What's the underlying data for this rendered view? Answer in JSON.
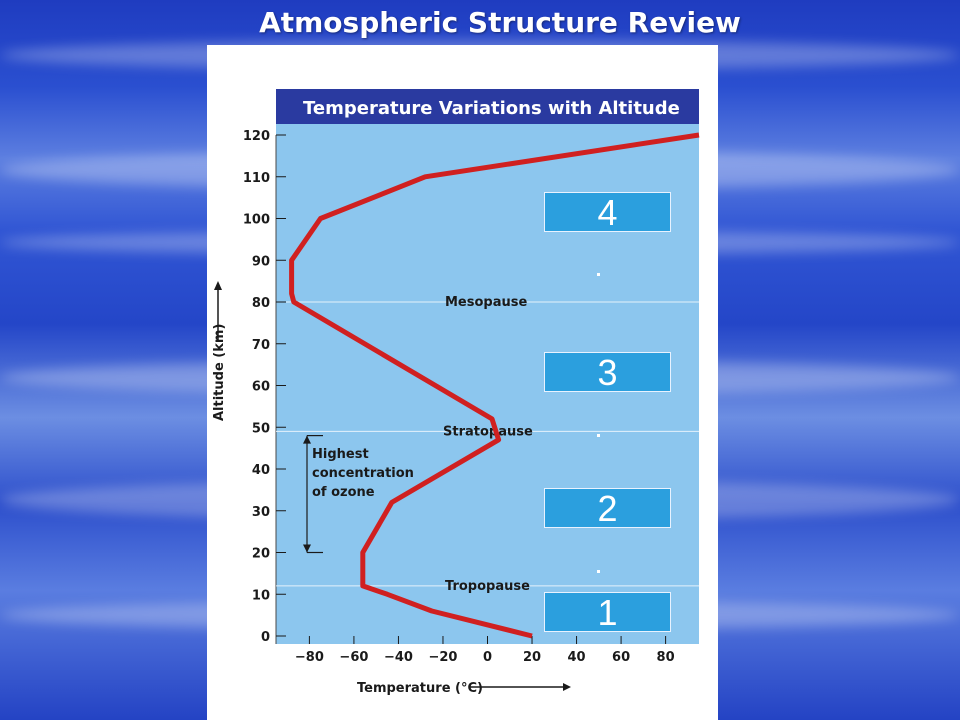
{
  "slide_title": "Atmospheric Structure Review",
  "chart_data": {
    "type": "line",
    "title": "Temperature Variations with Altitude",
    "xlabel": "Temperature (°C)",
    "ylabel": "Altitude (km)",
    "xlim": [
      -95,
      95
    ],
    "ylim": [
      0,
      120
    ],
    "xticks": [
      -80,
      -60,
      -40,
      -20,
      0,
      20,
      40,
      60,
      80
    ],
    "xtick_labels": [
      "−80",
      "−60",
      "−40",
      "−20",
      "0",
      "20",
      "40",
      "60",
      "80"
    ],
    "yticks": [
      0,
      10,
      20,
      30,
      40,
      50,
      60,
      70,
      80,
      90,
      100,
      110,
      120
    ],
    "series": [
      {
        "color": "#d02020",
        "x": [
          20,
          -25,
          -45,
          -56,
          -56,
          -43,
          5,
          2,
          -87,
          -88,
          -88,
          -75,
          -28,
          95
        ],
        "y": [
          0,
          6,
          10,
          12,
          20,
          32,
          47,
          52,
          80,
          82,
          90,
          100,
          110,
          120
        ]
      }
    ],
    "reference_lines": [
      {
        "y": 12,
        "label": "Tropopause"
      },
      {
        "y": 49,
        "label": "Stratopause"
      },
      {
        "y": 80,
        "label": "Mesopause"
      }
    ],
    "ozone_range": {
      "y": [
        20,
        48
      ],
      "label": [
        "Highest",
        "concentration",
        "of ozone"
      ]
    },
    "grid": false
  },
  "layer_boxes": [
    {
      "label": "4"
    },
    {
      "label": "3"
    },
    {
      "label": "2"
    },
    {
      "label": "1"
    }
  ]
}
